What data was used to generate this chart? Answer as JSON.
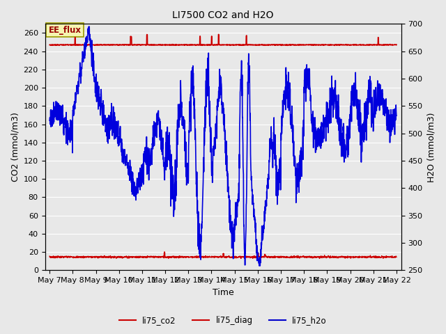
{
  "title": "LI7500 CO2 and H2O",
  "xlabel": "Time",
  "ylabel_left": "CO2 (mmol/m3)",
  "ylabel_right": "H2O (mmol/m3)",
  "ylim_left": [
    0,
    270
  ],
  "ylim_right": [
    250,
    700
  ],
  "bg_color": "#e8e8e8",
  "plot_bg_color": "#e8e8e8",
  "annotation_text": "EE_flux",
  "annotation_bg": "#f5f5b0",
  "annotation_edge": "#999900",
  "x_tick_labels": [
    "May 7",
    "May 8",
    "May 9",
    "May 10",
    "May 11",
    "May 12",
    "May 13",
    "May 14",
    "May 15",
    "May 16",
    "May 17",
    "May 18",
    "May 19",
    "May 20",
    "May 21",
    "May 22"
  ],
  "co2_base": 14.5,
  "diag_base": 247.0,
  "h2o_scale_min": 250,
  "h2o_scale_max": 700,
  "legend_entries": [
    "li75_co2",
    "li75_diag",
    "li75_h2o"
  ],
  "legend_colors": [
    "#cc0000",
    "#cc0000",
    "#0000cc"
  ],
  "co2_color": "#cc0000",
  "diag_color": "#cc0000",
  "h2o_color": "#0000dd",
  "grid_color": "#ffffff",
  "figsize": [
    6.4,
    4.8
  ],
  "dpi": 100
}
